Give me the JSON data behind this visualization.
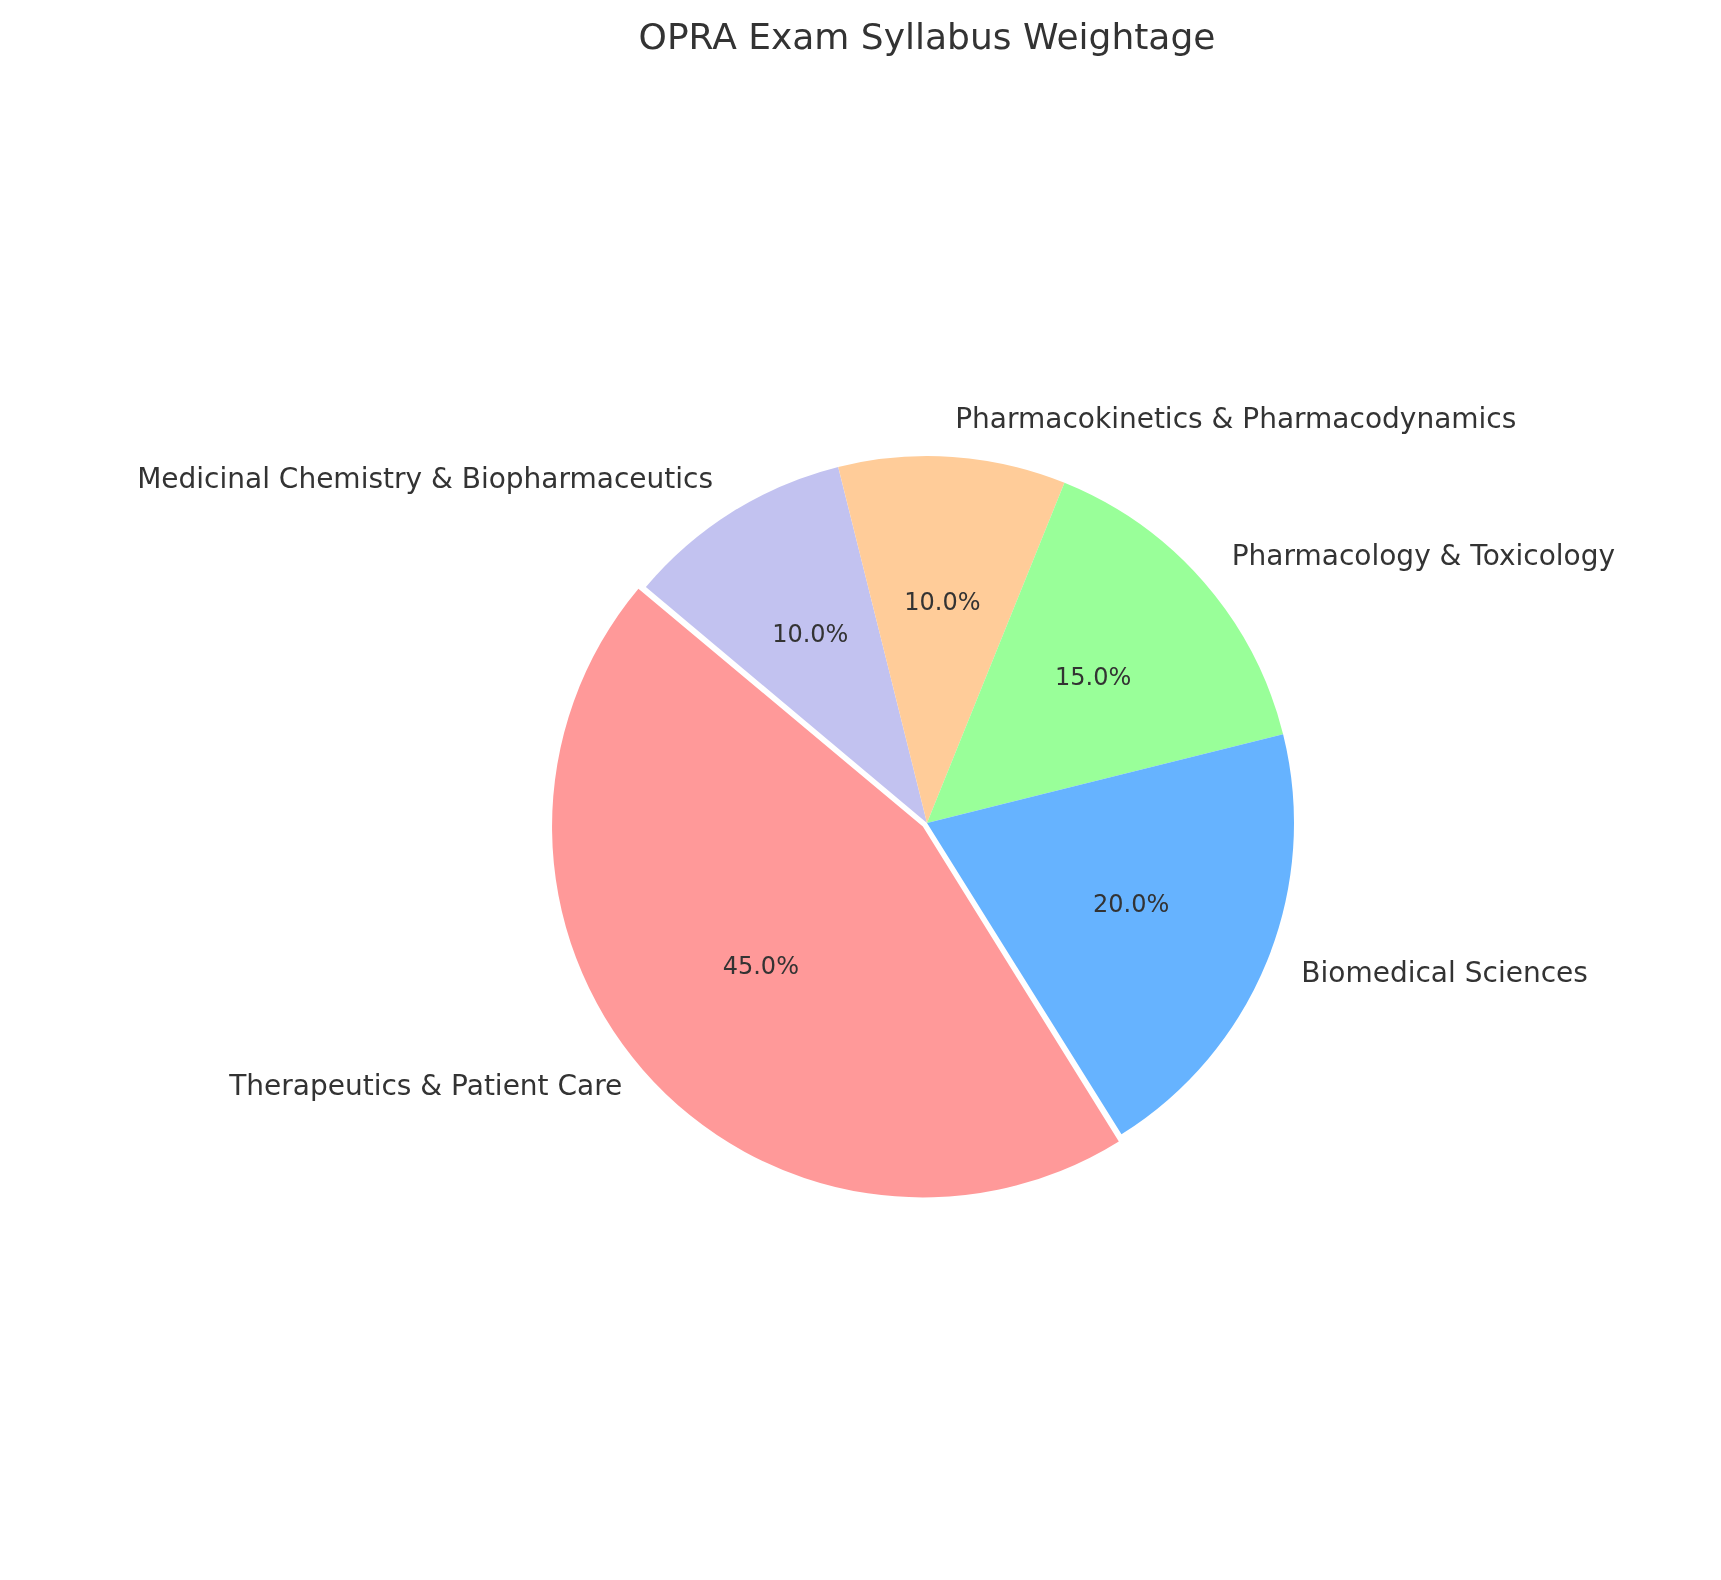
{
  "chart_data": {
    "type": "pie",
    "title": "OPRA Exam Syllabus Weightage",
    "categories": [
      "Medicinal Chemistry & Biopharmaceutics",
      "Pharmacokinetics & Pharmacodynamics",
      "Pharmacology & Toxicology",
      "Biomedical Sciences",
      "Therapeutics & Patient Care"
    ],
    "values": [
      10,
      10,
      15,
      20,
      45
    ],
    "colors": [
      "#c2c2f0",
      "#ffcc99",
      "#99ff99",
      "#66b3ff",
      "#ff9999"
    ],
    "value_labels": [
      "10.0%",
      "10.0%",
      "15.0%",
      "20.0%",
      "45.0%"
    ],
    "legend": false
  }
}
